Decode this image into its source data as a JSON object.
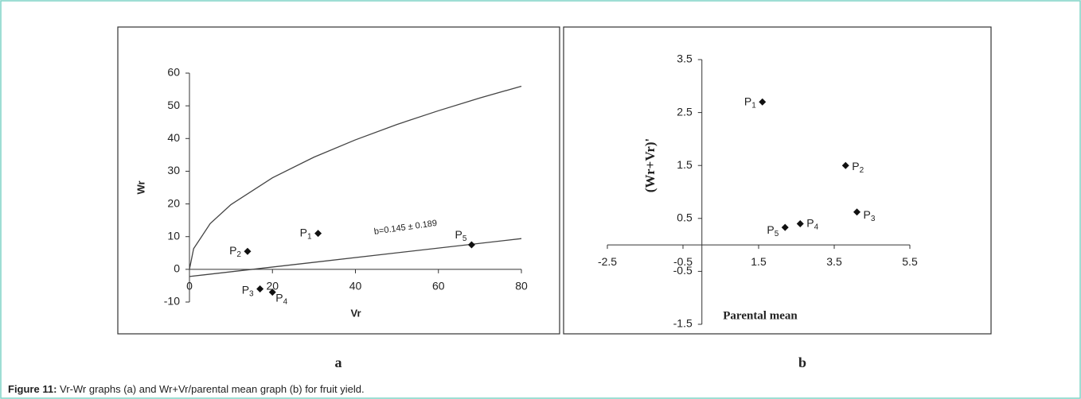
{
  "chart_data": [
    {
      "type": "scatter",
      "x_label": "Vr",
      "y_label": "Wr",
      "xlim": [
        0,
        80
      ],
      "xticks": [
        0,
        20,
        40,
        60,
        80
      ],
      "ylim": [
        -10,
        60
      ],
      "yticks": [
        -10,
        0,
        10,
        20,
        30,
        40,
        50,
        60
      ],
      "points": {
        "x": [
          31,
          14,
          17,
          20,
          68
        ],
        "y": [
          11,
          5.5,
          -6,
          -7,
          7.5
        ],
        "labels": [
          "P1",
          "P2",
          "P3",
          "P4",
          "P5"
        ]
      },
      "lines": [
        {
          "x": [
            0,
            1,
            5,
            10,
            20,
            30,
            40,
            50,
            60,
            70,
            80
          ],
          "y": [
            0,
            6.3,
            14,
            19.8,
            28,
            34.3,
            39.6,
            44.3,
            48.5,
            52.4,
            56
          ]
        },
        {
          "x": [
            0,
            80
          ],
          "y": [
            -2.2,
            9.4
          ]
        }
      ],
      "annotation": "b=0.145 ± 0.189",
      "panel": "a"
    },
    {
      "type": "scatter",
      "x_label": "Parental mean",
      "y_label": "(Wr+Vr)'",
      "xlim": [
        -2.5,
        5.5
      ],
      "xticks": [
        -2.5,
        -0.5,
        1.5,
        3.5,
        5.5
      ],
      "ylim": [
        -1.5,
        3.5
      ],
      "yticks": [
        -1.5,
        -0.5,
        0.5,
        1.5,
        2.5,
        3.5
      ],
      "points": {
        "x": [
          1.6,
          3.8,
          4.1,
          2.6,
          2.2
        ],
        "y": [
          2.7,
          1.5,
          0.62,
          0.4,
          0.33
        ],
        "labels": [
          "P1",
          "P2",
          "P3",
          "P4",
          "P5"
        ]
      },
      "panel": "b"
    }
  ],
  "caption": {
    "label": "Figure 11:",
    "text": "Vr-Wr graphs (a) and Wr+Vr/parental mean graph (b) for fruit yield."
  }
}
